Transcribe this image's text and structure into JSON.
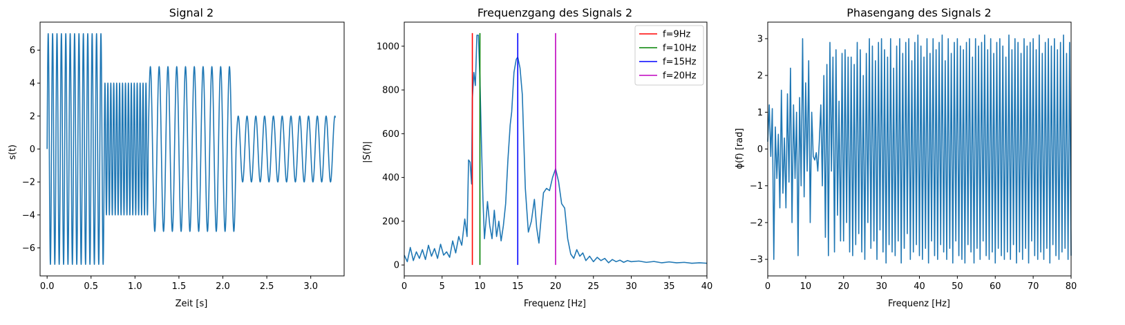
{
  "colors": {
    "signal": "#1f77b4",
    "red": "#ff0000",
    "green": "#008000",
    "blue": "#0000ff",
    "magenta": "#bf00bf"
  },
  "chart_data": [
    {
      "type": "line",
      "title": "Signal 2",
      "xlabel": "Zeit [s]",
      "ylabel": "s(t)",
      "xlim": [
        -0.08,
        3.38
      ],
      "ylim": [
        -7.7,
        7.7
      ],
      "xticks": [
        0.0,
        0.5,
        1.0,
        1.5,
        2.0,
        2.5,
        3.0
      ],
      "xtick_labels": [
        "0.0",
        "0.5",
        "1.0",
        "1.5",
        "2.0",
        "2.5",
        "3.0"
      ],
      "yticks": [
        -6,
        -4,
        -2,
        0,
        2,
        4,
        6
      ],
      "ytick_labels": [
        "−6",
        "−4",
        "−2",
        "0",
        "2",
        "4",
        "6"
      ],
      "segments": [
        {
          "t_start": 0.0,
          "t_end": 0.65,
          "amplitude": 7,
          "frequency_hz": 20
        },
        {
          "t_start": 0.65,
          "t_end": 1.15,
          "amplitude": 4,
          "frequency_hz": 30
        },
        {
          "t_start": 1.15,
          "t_end": 2.15,
          "amplitude": 5,
          "frequency_hz": 10
        },
        {
          "t_start": 2.15,
          "t_end": 3.28,
          "amplitude": 2,
          "frequency_hz": 10
        }
      ]
    },
    {
      "type": "line",
      "title": "Frequenzgang des Signals 2",
      "xlabel": "Frequenz [Hz]",
      "ylabel": "|S(f)|",
      "xlim": [
        0,
        40
      ],
      "ylim": [
        -50,
        1110
      ],
      "xticks": [
        0,
        5,
        10,
        15,
        20,
        25,
        30,
        35,
        40
      ],
      "xtick_labels": [
        "0",
        "5",
        "10",
        "15",
        "20",
        "25",
        "30",
        "35",
        "40"
      ],
      "yticks": [
        0,
        200,
        400,
        600,
        800,
        1000
      ],
      "ytick_labels": [
        "0",
        "200",
        "400",
        "600",
        "800",
        "1000"
      ],
      "series": [
        {
          "x": [
            0,
            0.4,
            0.8,
            1.2,
            1.6,
            2.0,
            2.4,
            2.8,
            3.2,
            3.6,
            4.0,
            4.4,
            4.8,
            5.2,
            5.6,
            6.0,
            6.4,
            6.8,
            7.2,
            7.6,
            8.0,
            8.3,
            8.5,
            8.7,
            8.9,
            9.0,
            9.2,
            9.4,
            9.6,
            9.8,
            10.0,
            10.2,
            10.4,
            10.6,
            10.8,
            11.0,
            11.3,
            11.6,
            11.9,
            12.2,
            12.5,
            12.8,
            13.1,
            13.4,
            13.7,
            14.0,
            14.2,
            14.5,
            14.8,
            15.0,
            15.3,
            15.6,
            16.0,
            16.4,
            16.8,
            17.2,
            17.5,
            17.8,
            18.1,
            18.4,
            18.8,
            19.2,
            19.6,
            20.0,
            20.4,
            20.8,
            21.2,
            21.6,
            22.0,
            22.4,
            22.8,
            23.2,
            23.6,
            24.0,
            24.5,
            25.0,
            25.5,
            26.0,
            26.5,
            27.0,
            27.5,
            28.0,
            28.5,
            29.0,
            29.5,
            30.0,
            31.0,
            32.0,
            33.0,
            34.0,
            35.0,
            36.0,
            37.0,
            38.0,
            39.0,
            40.0
          ],
          "y": [
            45,
            15,
            80,
            20,
            60,
            30,
            70,
            25,
            90,
            40,
            75,
            30,
            95,
            45,
            60,
            35,
            110,
            55,
            130,
            90,
            210,
            130,
            480,
            470,
            370,
            760,
            880,
            820,
            1050,
            1050,
            850,
            560,
            300,
            120,
            200,
            290,
            180,
            120,
            250,
            130,
            200,
            110,
            180,
            280,
            480,
            640,
            700,
            880,
            940,
            950,
            900,
            780,
            350,
            150,
            200,
            300,
            170,
            100,
            220,
            330,
            350,
            340,
            400,
            440,
            380,
            280,
            260,
            120,
            50,
            30,
            70,
            40,
            55,
            20,
            40,
            15,
            35,
            20,
            30,
            10,
            25,
            15,
            22,
            12,
            20,
            15,
            18,
            12,
            16,
            10,
            14,
            10,
            12,
            8,
            10,
            8
          ]
        }
      ],
      "vlines": [
        {
          "label": "f=9Hz",
          "x": 9,
          "color": "#ff0000"
        },
        {
          "label": "f=10Hz",
          "x": 10,
          "color": "#008000"
        },
        {
          "label": "f=15Hz",
          "x": 15,
          "color": "#0000ff"
        },
        {
          "label": "f=20Hz",
          "x": 20,
          "color": "#bf00bf"
        }
      ],
      "vline_range": [
        0,
        1060
      ],
      "legend": "top-right"
    },
    {
      "type": "line",
      "title": "Phasengang des Signals 2",
      "xlabel": "Frequenz [Hz]",
      "ylabel": "ϕ(f) [rad]",
      "xlim": [
        0,
        80
      ],
      "ylim": [
        -3.45,
        3.45
      ],
      "xticks": [
        0,
        10,
        20,
        30,
        40,
        50,
        60,
        70,
        80
      ],
      "xtick_labels": [
        "0",
        "10",
        "20",
        "30",
        "40",
        "50",
        "60",
        "70",
        "80"
      ],
      "yticks": [
        -3,
        -2,
        -1,
        0,
        1,
        2,
        3
      ],
      "ytick_labels": [
        "−3",
        "−2",
        "−1",
        "0",
        "1",
        "2",
        "3"
      ],
      "series": [
        {
          "x": [
            0,
            0.4,
            0.8,
            1.2,
            1.6,
            2.0,
            2.4,
            2.8,
            3.2,
            3.6,
            4.0,
            4.4,
            4.8,
            5.2,
            5.6,
            6.0,
            6.4,
            6.8,
            7.2,
            7.6,
            8.0,
            8.4,
            8.8,
            9.2,
            9.6,
            10.0,
            10.4,
            10.8,
            11.2,
            11.6,
            12.0,
            12.4,
            12.8,
            13.2,
            13.6,
            14.0,
            14.4,
            14.8,
            15.2,
            15.6,
            16.0,
            16.4,
            16.8,
            17.2,
            17.6,
            18.0,
            18.4,
            18.8,
            19.2,
            19.6,
            20.0,
            20.4,
            20.8,
            21.2,
            21.6,
            22.0,
            22.4,
            22.8,
            23.2,
            23.6,
            24.0,
            24.4,
            24.8,
            25.2,
            25.6,
            26.0,
            26.4,
            26.8,
            27.2,
            27.6,
            28.0,
            28.4,
            28.8,
            29.2,
            29.6,
            30.0,
            30.4,
            30.8,
            31.2,
            31.6,
            32.0,
            32.4,
            32.8,
            33.2,
            33.6,
            34.0,
            34.4,
            34.8,
            35.2,
            35.6,
            36.0,
            36.4,
            36.8,
            37.2,
            37.6,
            38.0,
            38.4,
            38.8,
            39.2,
            39.6,
            40.0,
            40.4,
            40.8,
            41.2,
            41.6,
            42.0,
            42.4,
            42.8,
            43.2,
            43.6,
            44.0,
            44.4,
            44.8,
            45.2,
            45.6,
            46.0,
            46.4,
            46.8,
            47.2,
            47.6,
            48.0,
            48.4,
            48.8,
            49.2,
            49.6,
            50.0,
            50.4,
            50.8,
            51.2,
            51.6,
            52.0,
            52.4,
            52.8,
            53.2,
            53.6,
            54.0,
            54.4,
            54.8,
            55.2,
            55.6,
            56.0,
            56.4,
            56.8,
            57.2,
            57.6,
            58.0,
            58.4,
            58.8,
            59.2,
            59.6,
            60.0,
            60.4,
            60.8,
            61.2,
            61.6,
            62.0,
            62.4,
            62.8,
            63.2,
            63.6,
            64.0,
            64.4,
            64.8,
            65.2,
            65.6,
            66.0,
            66.4,
            66.8,
            67.2,
            67.6,
            68.0,
            68.4,
            68.8,
            69.2,
            69.6,
            70.0,
            70.4,
            70.8,
            71.2,
            71.6,
            72.0,
            72.4,
            72.8,
            73.2,
            73.6,
            74.0,
            74.4,
            74.8,
            75.2,
            75.6,
            76.0,
            76.4,
            76.8,
            77.2,
            77.6,
            78.0,
            78.4,
            78.8,
            79.2,
            79.6,
            80.0
          ],
          "y": [
            0.2,
            1.2,
            -0.2,
            1.1,
            -3.0,
            0.6,
            -0.8,
            0.4,
            -1.6,
            1.6,
            -1.2,
            0.3,
            -1.6,
            1.5,
            -0.9,
            2.2,
            -2.0,
            1.2,
            -0.8,
            1.0,
            -2.9,
            1.4,
            -1.0,
            3.0,
            -1.3,
            1.8,
            -0.6,
            2.4,
            -2.0,
            1.0,
            -0.2,
            -0.3,
            -0.1,
            -0.6,
            0.2,
            1.2,
            -1.0,
            2.0,
            -2.4,
            2.3,
            -2.9,
            2.9,
            -0.6,
            2.5,
            -2.8,
            2.7,
            -1.8,
            1.3,
            -2.5,
            2.6,
            -2.5,
            2.7,
            -2.0,
            2.5,
            -2.8,
            2.5,
            -2.9,
            2.3,
            -2.6,
            2.9,
            -2.3,
            2.7,
            -2.8,
            2.0,
            -3.0,
            2.6,
            -2.0,
            3.0,
            -2.7,
            2.8,
            -2.5,
            2.4,
            -3.0,
            2.9,
            -2.2,
            3.0,
            -2.8,
            2.7,
            -3.1,
            2.5,
            -2.6,
            3.0,
            -2.8,
            2.2,
            -2.9,
            2.8,
            -2.5,
            3.0,
            -3.1,
            2.6,
            -2.7,
            2.9,
            -2.3,
            3.0,
            -3.0,
            2.4,
            -2.8,
            2.9,
            -2.6,
            3.1,
            -2.9,
            2.8,
            -3.0,
            2.5,
            -2.7,
            3.0,
            -3.1,
            2.6,
            -2.5,
            3.0,
            -2.9,
            2.7,
            -3.0,
            2.9,
            -2.6,
            3.1,
            -2.8,
            2.4,
            -3.0,
            3.0,
            -2.7,
            2.6,
            -3.1,
            2.9,
            -2.5,
            3.0,
            -2.9,
            2.8,
            -3.0,
            2.7,
            -3.1,
            2.9,
            -2.6,
            3.0,
            -2.8,
            2.5,
            -3.1,
            3.0,
            -2.7,
            2.8,
            -3.0,
            2.9,
            -2.5,
            3.1,
            -2.9,
            2.7,
            -3.0,
            3.0,
            -2.8,
            2.6,
            -3.1,
            2.9,
            -2.7,
            3.0,
            -2.9,
            2.8,
            -3.0,
            2.5,
            -2.8,
            3.1,
            -3.0,
            2.7,
            -2.6,
            3.0,
            -3.1,
            2.9,
            -2.8,
            2.6,
            -3.0,
            3.0,
            -2.7,
            2.8,
            -3.1,
            2.9,
            -2.5,
            3.0,
            -2.9,
            2.7,
            -3.0,
            3.1,
            -2.8,
            2.6,
            -3.0,
            2.9,
            -2.7,
            3.0,
            -3.1,
            2.8,
            -2.6,
            3.0,
            -2.9,
            2.7,
            -3.0,
            2.9,
            -2.8,
            3.1,
            -2.7,
            2.6,
            -3.0,
            2.9,
            -2.9
          ]
        }
      ]
    }
  ]
}
